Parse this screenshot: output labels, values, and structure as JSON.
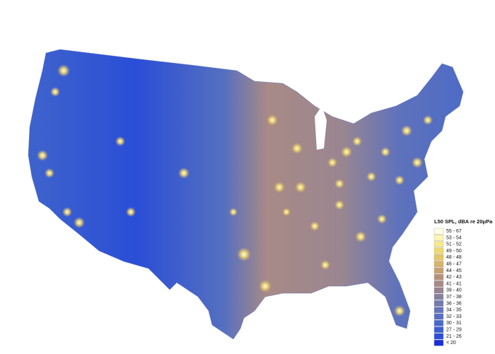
{
  "legend": {
    "title": "L50 SPL, dBA re 20μPa",
    "items": [
      {
        "label": "55 - 67",
        "color": "#fffde2"
      },
      {
        "label": "53 - 54",
        "color": "#fcf5b3"
      },
      {
        "label": "51 - 52",
        "color": "#f6e88c"
      },
      {
        "label": "49 - 50",
        "color": "#eed872"
      },
      {
        "label": "48 - 48",
        "color": "#e5c767"
      },
      {
        "label": "46 - 47",
        "color": "#d8b36a"
      },
      {
        "label": "44 - 45",
        "color": "#c8a072"
      },
      {
        "label": "42 - 43",
        "color": "#b8917a"
      },
      {
        "label": "41 - 41",
        "color": "#a88a86"
      },
      {
        "label": "39 - 40",
        "color": "#978491"
      },
      {
        "label": "37 - 38",
        "color": "#8580a1"
      },
      {
        "label": "36 - 36",
        "color": "#7479ae"
      },
      {
        "label": "34 - 35",
        "color": "#6573b9"
      },
      {
        "label": "32 - 33",
        "color": "#586fc2"
      },
      {
        "label": "30 - 31",
        "color": "#4a68c9"
      },
      {
        "label": "27 - 29",
        "color": "#3a5ed1"
      },
      {
        "label": "21 - 26",
        "color": "#2a4ed8"
      },
      {
        "label": "< 20",
        "color": "#1a2ed9"
      }
    ]
  }
}
